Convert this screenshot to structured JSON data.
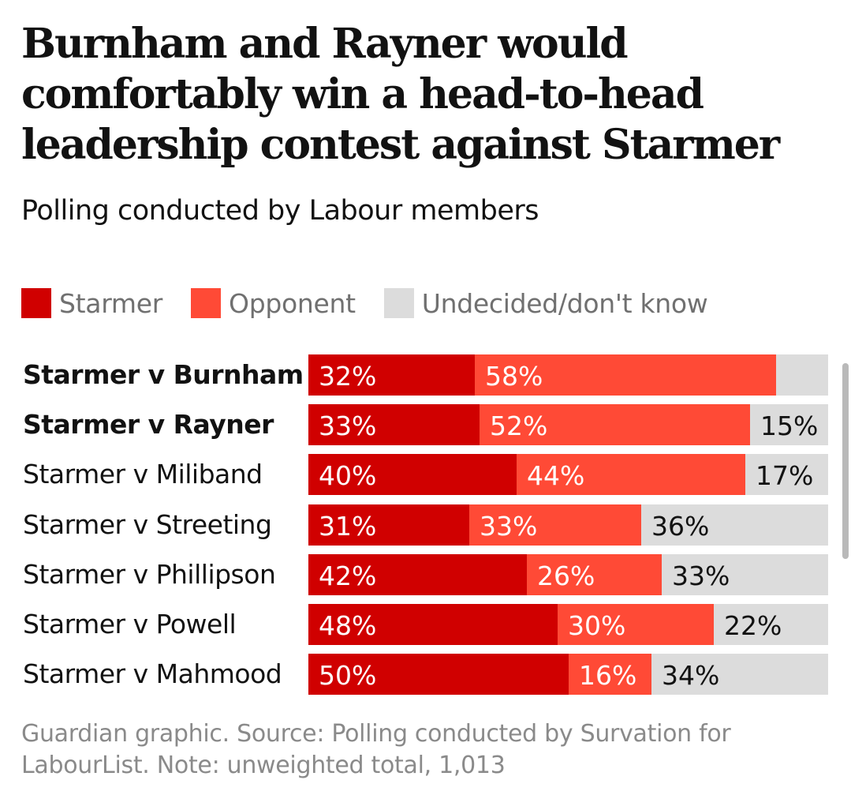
{
  "colors": {
    "starmer": "#d00000",
    "opponent": "#ff4a36",
    "undecided": "#dcdcdc"
  },
  "chart_data": {
    "type": "bar",
    "orientation": "horizontal",
    "stacked": true,
    "title": "Burnham and Rayner would comfortably win a head-to-head leadership contest against Starmer",
    "subtitle": "Polling conducted by Labour members",
    "legend_position": "top-left",
    "grid": false,
    "xlim": [
      0,
      100
    ],
    "unit": "%",
    "series": [
      {
        "key": "starmer",
        "name": "Starmer"
      },
      {
        "key": "opponent",
        "name": "Opponent"
      },
      {
        "key": "undecided",
        "name": "Undecided/don't know"
      }
    ],
    "rows": [
      {
        "label": "Starmer v Burnham",
        "bold": true,
        "starmer": 32,
        "opponent": 58,
        "undecided": 10,
        "show_undecided_label": false
      },
      {
        "label": "Starmer v Rayner",
        "bold": true,
        "starmer": 33,
        "opponent": 52,
        "undecided": 15,
        "show_undecided_label": true
      },
      {
        "label": "Starmer v Miliband",
        "bold": false,
        "starmer": 40,
        "opponent": 44,
        "undecided": 17,
        "show_undecided_label": true
      },
      {
        "label": "Starmer v Streeting",
        "bold": false,
        "starmer": 31,
        "opponent": 33,
        "undecided": 36,
        "show_undecided_label": true
      },
      {
        "label": "Starmer v Phillipson",
        "bold": false,
        "starmer": 42,
        "opponent": 26,
        "undecided": 33,
        "show_undecided_label": true
      },
      {
        "label": "Starmer v Powell",
        "bold": false,
        "starmer": 48,
        "opponent": 30,
        "undecided": 22,
        "show_undecided_label": true
      },
      {
        "label": "Starmer v Mahmood",
        "bold": false,
        "starmer": 50,
        "opponent": 16,
        "undecided": 34,
        "show_undecided_label": true
      }
    ],
    "source": "Guardian graphic. Source: Polling conducted by Survation for LabourList. Note: unweighted total, 1,013"
  }
}
